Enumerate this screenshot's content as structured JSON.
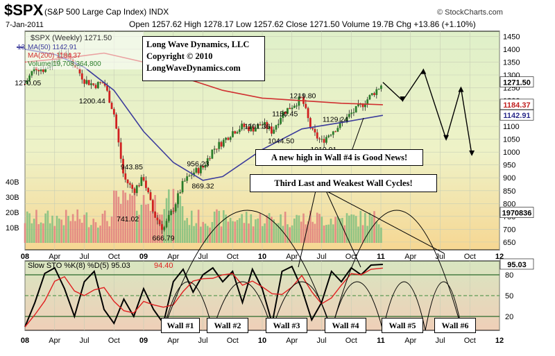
{
  "header": {
    "symbol": "$SPX",
    "name": "(S&P 500 Large Cap Index)",
    "exchange": "INDX",
    "date": "7-Jan-2011",
    "ohlc": "Open 1257.62 High 1278.17 Low 1257.62 Close 1271.50 Volume 19.7B Chg +13.86 (+1.10%)",
    "source": "© StockCharts.com"
  },
  "colors": {
    "price_bg": "#e3eec9",
    "vol_bg": "#f3d28e",
    "sto_bg": "#ecd3b6",
    "ma50": "#3c3c9c",
    "ma200": "#d03030",
    "up": "#2a7d2a",
    "down": "#d02020",
    "k": "#000000",
    "d": "#e02020"
  },
  "legend": {
    "price": "$SPX (Weekly) 1271.50",
    "ma50": "MA(50) 1142.91",
    "ma200": "MA(200) 1184.37",
    "volume": "Volume 19,708,364,800",
    "sto": "Slow STO %K(8) %D(5) 95.03",
    "sto_d": "94.40"
  },
  "price_axis": {
    "ticks": [
      "1450",
      "1400",
      "1350",
      "1300",
      "1250",
      "1200",
      "1150",
      "1100",
      "1050",
      "1000",
      "950",
      "900",
      "850",
      "800",
      "750",
      "700",
      "650"
    ],
    "ylim": [
      620,
      1470
    ]
  },
  "volume_axis": {
    "ticks": [
      "40B",
      "30B",
      "20B",
      "10B"
    ],
    "max": 40
  },
  "sto_axis": {
    "ticks": [
      "80",
      "50",
      "20"
    ]
  },
  "x_axis": {
    "labels": [
      "08",
      "Apr",
      "Jul",
      "Oct",
      "09",
      "Apr",
      "Jul",
      "Oct",
      "10",
      "Apr",
      "Jul",
      "Oct",
      "11",
      "Apr",
      "Jul",
      "Oct",
      "12"
    ],
    "range": [
      0,
      48
    ]
  },
  "badges": {
    "close": "1271.50",
    "ma200": "1184.37",
    "ma50": "1142.91",
    "volume": "1970836",
    "sto": "95.03",
    "left": "13"
  },
  "annotations": {
    "copyright": [
      "Long Wave Dynamics, LLC",
      "Copyright © 2010",
      "LongWaveDynamics.com"
    ],
    "good_news": "A new high in Wall #4 is Good News!",
    "third_last": "Third Last and Weakest Wall Cycles!",
    "walls": [
      "Wall #1",
      "Wall #2",
      "Wall #3",
      "Wall #4",
      "Wall #5",
      "Wall #6"
    ]
  },
  "chart_data": {
    "type": "line",
    "x_unit": "months from Jan 2008",
    "price_labels": [
      {
        "x": 0.3,
        "y": 1270.05,
        "text": "1270.05"
      },
      {
        "x": 6.8,
        "y": 1200.44,
        "text": "1200.44"
      },
      {
        "x": 10.8,
        "y": 943.85,
        "text": "943.85"
      },
      {
        "x": 10.4,
        "y": 741.02,
        "text": "741.02"
      },
      {
        "x": 14.0,
        "y": 666.79,
        "text": "666.79"
      },
      {
        "x": 18.0,
        "y": 869.32,
        "text": "869.32"
      },
      {
        "x": 17.5,
        "y": 956.23,
        "text": "956.23"
      },
      {
        "x": 23.5,
        "y": 1101.36,
        "text": "1101.36"
      },
      {
        "x": 26.3,
        "y": 1150.45,
        "text": "1150.45"
      },
      {
        "x": 25.9,
        "y": 1044.5,
        "text": "1044.50"
      },
      {
        "x": 28.1,
        "y": 1219.8,
        "text": "1219.80"
      },
      {
        "x": 30.2,
        "y": 1010.91,
        "text": "1010.91"
      },
      {
        "x": 31.4,
        "y": 1129.24,
        "text": "1129.24"
      }
    ],
    "price": [
      [
        0,
        1265
      ],
      [
        1,
        1330
      ],
      [
        2,
        1320
      ],
      [
        3,
        1360
      ],
      [
        4,
        1390
      ],
      [
        5,
        1340
      ],
      [
        6,
        1280
      ],
      [
        7,
        1260
      ],
      [
        8,
        1270
      ],
      [
        9,
        1150
      ],
      [
        10,
        900
      ],
      [
        11,
        850
      ],
      [
        12,
        900
      ],
      [
        13,
        760
      ],
      [
        14,
        700
      ],
      [
        15,
        780
      ],
      [
        16,
        880
      ],
      [
        17,
        920
      ],
      [
        18,
        940
      ],
      [
        19,
        1010
      ],
      [
        20,
        1040
      ],
      [
        21,
        1080
      ],
      [
        22,
        1100
      ],
      [
        23,
        1090
      ],
      [
        24,
        1110
      ],
      [
        25,
        1080
      ],
      [
        26,
        1150
      ],
      [
        27,
        1180
      ],
      [
        28,
        1210
      ],
      [
        29,
        1080
      ],
      [
        30,
        1040
      ],
      [
        31,
        1080
      ],
      [
        32,
        1110
      ],
      [
        33,
        1150
      ],
      [
        34,
        1180
      ],
      [
        35,
        1220
      ],
      [
        36,
        1260
      ],
      [
        36.2,
        1271.5
      ]
    ],
    "ma200": [
      [
        0,
        1350
      ],
      [
        4,
        1365
      ],
      [
        8,
        1385
      ],
      [
        12,
        1350
      ],
      [
        16,
        1290
      ],
      [
        20,
        1240
      ],
      [
        24,
        1210
      ],
      [
        28,
        1200
      ],
      [
        32,
        1190
      ],
      [
        36.2,
        1184.37
      ]
    ],
    "ma50": [
      [
        0,
        1400
      ],
      [
        3,
        1380
      ],
      [
        6,
        1330
      ],
      [
        9,
        1240
      ],
      [
        12,
        1080
      ],
      [
        15,
        960
      ],
      [
        18,
        890
      ],
      [
        20,
        905
      ],
      [
        24,
        1010
      ],
      [
        28,
        1090
      ],
      [
        32,
        1115
      ],
      [
        36.2,
        1142.91
      ]
    ],
    "forecast": [
      [
        36.2,
        1271.5
      ],
      [
        38.2,
        1200
      ],
      [
        40.3,
        1320
      ],
      [
        42.6,
        1050
      ],
      [
        44.1,
        1250
      ],
      [
        45.2,
        990
      ]
    ],
    "sto_k": [
      [
        0,
        5
      ],
      [
        1,
        40
      ],
      [
        2,
        82
      ],
      [
        3,
        90
      ],
      [
        4,
        60
      ],
      [
        5,
        20
      ],
      [
        6,
        70
      ],
      [
        7,
        85
      ],
      [
        8,
        30
      ],
      [
        9,
        10
      ],
      [
        10,
        45
      ],
      [
        11,
        20
      ],
      [
        12,
        60
      ],
      [
        13,
        30
      ],
      [
        14,
        10
      ],
      [
        15,
        70
      ],
      [
        16,
        88
      ],
      [
        17,
        55
      ],
      [
        18,
        80
      ],
      [
        19,
        90
      ],
      [
        20,
        70
      ],
      [
        21,
        85
      ],
      [
        22,
        40
      ],
      [
        23,
        88
      ],
      [
        24,
        60
      ],
      [
        25,
        10
      ],
      [
        26,
        85
      ],
      [
        27,
        92
      ],
      [
        28,
        60
      ],
      [
        29,
        15
      ],
      [
        30,
        40
      ],
      [
        31,
        85
      ],
      [
        32,
        70
      ],
      [
        33,
        90
      ],
      [
        34,
        80
      ],
      [
        35,
        94
      ],
      [
        36.2,
        95.03
      ]
    ],
    "walls_start": [
      14,
      19,
      25,
      31,
      36.2,
      40.5,
      44.2
    ]
  }
}
